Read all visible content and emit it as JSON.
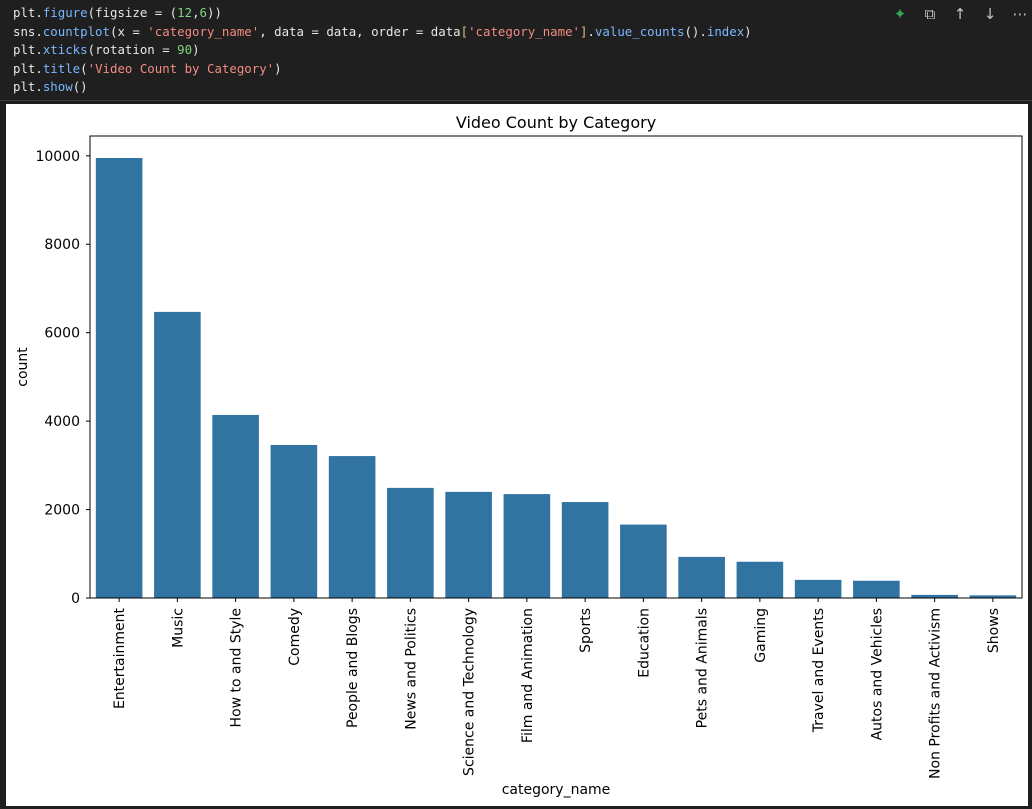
{
  "code_cell": {
    "lines": [
      [
        {
          "t": "plt.",
          "c": "plain"
        },
        {
          "t": "figure",
          "c": "fn"
        },
        {
          "t": "(figsize = (",
          "c": "plain"
        },
        {
          "t": "12",
          "c": "num"
        },
        {
          "t": ",",
          "c": "plain"
        },
        {
          "t": "6",
          "c": "num"
        },
        {
          "t": "))",
          "c": "plain"
        }
      ],
      [
        {
          "t": "sns.",
          "c": "plain"
        },
        {
          "t": "countplot",
          "c": "fn"
        },
        {
          "t": "(x = ",
          "c": "plain"
        },
        {
          "t": "'category_name'",
          "c": "str"
        },
        {
          "t": ", data = data, order = data",
          "c": "plain"
        },
        {
          "t": "[",
          "c": "br"
        },
        {
          "t": "'category_name'",
          "c": "str"
        },
        {
          "t": "]",
          "c": "br"
        },
        {
          "t": ".",
          "c": "plain"
        },
        {
          "t": "value_counts",
          "c": "fn"
        },
        {
          "t": "().",
          "c": "plain"
        },
        {
          "t": "index",
          "c": "fn"
        },
        {
          "t": ")",
          "c": "plain"
        }
      ],
      [
        {
          "t": "plt.",
          "c": "plain"
        },
        {
          "t": "xticks",
          "c": "fn"
        },
        {
          "t": "(rotation = ",
          "c": "plain"
        },
        {
          "t": "90",
          "c": "num"
        },
        {
          "t": ")",
          "c": "plain"
        }
      ],
      [
        {
          "t": "plt.",
          "c": "plain"
        },
        {
          "t": "title",
          "c": "fn"
        },
        {
          "t": "(",
          "c": "plain"
        },
        {
          "t": "'Video Count by Category'",
          "c": "str"
        },
        {
          "t": ")",
          "c": "plain"
        }
      ],
      [
        {
          "t": "plt.",
          "c": "plain"
        },
        {
          "t": "show",
          "c": "fn"
        },
        {
          "t": "()",
          "c": "plain"
        }
      ]
    ],
    "toolbar_icons": [
      "sparkle-icon",
      "copy-icon",
      "arrow-up-icon",
      "arrow-down-icon",
      "more-icon"
    ]
  },
  "colors": {
    "bar": "#3274a1",
    "accent_green": "#2fa84f"
  },
  "chart_data": {
    "type": "bar",
    "title": "Video Count by Category",
    "xlabel": "category_name",
    "ylabel": "count",
    "categories": [
      "Entertainment",
      "Music",
      "How to and Style",
      "Comedy",
      "People and Blogs",
      "News and Politics",
      "Science and Technology",
      "Film and Animation",
      "Sports",
      "Education",
      "Pets and Animals",
      "Gaming",
      "Travel and Events",
      "Autos and Vehicles",
      "Non Profits and Activism",
      "Shows"
    ],
    "values": [
      9950,
      6470,
      4140,
      3460,
      3210,
      2490,
      2400,
      2350,
      2170,
      1660,
      930,
      820,
      410,
      390,
      70,
      60
    ],
    "yticks": [
      0,
      2000,
      4000,
      6000,
      8000,
      10000
    ],
    "ylim": [
      0,
      10448
    ],
    "xtick_rotation": 90,
    "grid": false
  }
}
